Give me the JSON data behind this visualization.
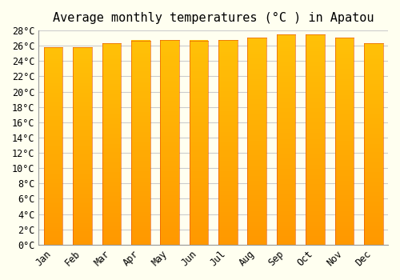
{
  "title": "Average monthly temperatures (°C ) in Apatou",
  "months": [
    "Jan",
    "Feb",
    "Mar",
    "Apr",
    "May",
    "Jun",
    "Jul",
    "Aug",
    "Sep",
    "Oct",
    "Nov",
    "Dec"
  ],
  "values": [
    25.8,
    25.8,
    26.3,
    26.7,
    26.8,
    26.7,
    26.8,
    27.1,
    27.5,
    27.5,
    27.1,
    26.3
  ],
  "bar_color_top": "#FFC107",
  "bar_color_bottom": "#FF9800",
  "bar_edge_color": "#E65100",
  "ylim": [
    0,
    28
  ],
  "ytick_step": 2,
  "background_color": "#FFFFF0",
  "grid_color": "#CCCCCC",
  "title_fontsize": 11,
  "tick_fontsize": 8.5,
  "bar_width": 0.65
}
